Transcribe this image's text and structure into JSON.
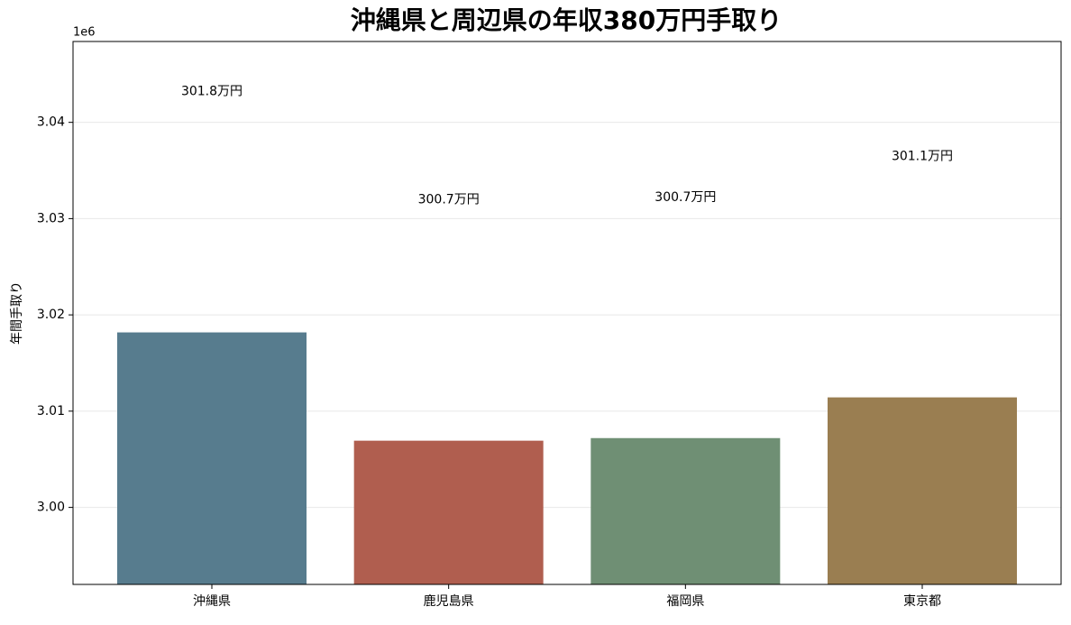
{
  "chart_data": {
    "type": "bar",
    "title": "沖縄県と周辺県の年収380万円手取り",
    "y_label": "年間手取り",
    "y_offset_label": "1e6",
    "categories": [
      "沖縄県",
      "鹿児島県",
      "福岡県",
      "東京都"
    ],
    "values": [
      3018180,
      3006930,
      3007200,
      3011430
    ],
    "value_labels": [
      "301.8万円",
      "300.7万円",
      "300.7万円",
      "301.1万円"
    ],
    "colors": [
      "#577c8e",
      "#b05e4f",
      "#6f8f74",
      "#9a7e51"
    ],
    "ylim": [
      2992000,
      3048400
    ],
    "yticks": [
      {
        "value": 3000000,
        "label": "3.00"
      },
      {
        "value": 3010000,
        "label": "3.01"
      },
      {
        "value": 3020000,
        "label": "3.02"
      },
      {
        "value": 3030000,
        "label": "3.03"
      },
      {
        "value": 3040000,
        "label": "3.04"
      }
    ],
    "grid": true
  }
}
